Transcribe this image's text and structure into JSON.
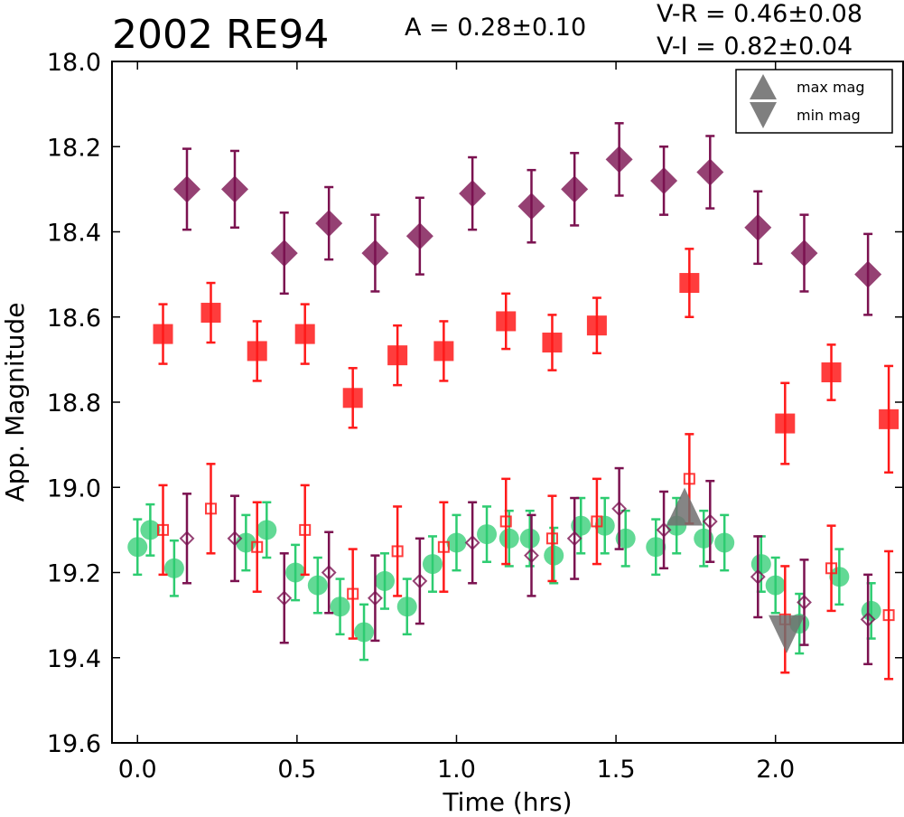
{
  "header": {
    "title": "2002 RE94",
    "amplitude": "A  = 0.28±0.10",
    "color_vr": "V-R = 0.46±0.08",
    "color_vi": "V-I  = 0.82±0.04"
  },
  "chart_data": {
    "type": "scatter",
    "title": "2002 RE94",
    "xlabel": "Time (hrs)",
    "ylabel": "App. Magnitude",
    "xlim": [
      -0.08,
      2.4
    ],
    "ylim": [
      19.6,
      18.0
    ],
    "y_inverted": true,
    "xticks": [
      "0.0",
      "0.5",
      "1.0",
      "1.5",
      "2.0"
    ],
    "xtick_values": [
      0.0,
      0.5,
      1.0,
      1.5,
      2.0
    ],
    "yticks": [
      "18.0",
      "18.2",
      "18.4",
      "18.6",
      "18.8",
      "19.0",
      "19.2",
      "19.4",
      "19.6"
    ],
    "ytick_values": [
      18.0,
      18.2,
      18.4,
      18.6,
      18.8,
      19.0,
      19.2,
      19.4,
      19.6
    ],
    "grid": false,
    "legend_position": "top-right",
    "legend": [
      {
        "label": "max mag",
        "marker": "triangle-up",
        "color": "#7f7f7f"
      },
      {
        "label": "min mag",
        "marker": "triangle-down",
        "color": "#7f7f7f"
      }
    ],
    "colors": {
      "i_band": "#7b1250",
      "r_band": "#ff1a1a",
      "v_band": "#2ecc71",
      "extrema": "#707070"
    },
    "series": [
      {
        "marker": "diamond-filled",
        "color": "#7b1250",
        "x": [
          0.155,
          0.305,
          0.46,
          0.6,
          0.745,
          0.885,
          1.05,
          1.235,
          1.37,
          1.51,
          1.65,
          1.795,
          1.945,
          2.09,
          2.29
        ],
        "y": [
          18.3,
          18.3,
          18.45,
          18.38,
          18.45,
          18.41,
          18.31,
          18.34,
          18.3,
          18.23,
          18.28,
          18.26,
          18.39,
          18.45,
          18.5
        ],
        "err": [
          0.095,
          0.09,
          0.095,
          0.085,
          0.09,
          0.09,
          0.085,
          0.085,
          0.085,
          0.085,
          0.08,
          0.085,
          0.085,
          0.09,
          0.095
        ]
      },
      {
        "marker": "square-filled",
        "color": "#ff1a1a",
        "x": [
          0.08,
          0.23,
          0.375,
          0.525,
          0.675,
          0.815,
          0.96,
          1.155,
          1.3,
          1.44,
          1.73,
          2.03,
          2.175,
          2.355
        ],
        "y": [
          18.64,
          18.59,
          18.68,
          18.64,
          18.79,
          18.69,
          18.68,
          18.61,
          18.66,
          18.62,
          18.52,
          18.85,
          18.73,
          18.84
        ],
        "err": [
          0.07,
          0.07,
          0.07,
          0.07,
          0.07,
          0.07,
          0.07,
          0.065,
          0.065,
          0.065,
          0.08,
          0.095,
          0.065,
          0.125
        ]
      },
      {
        "marker": "circle-filled",
        "color": "#2ecc71",
        "x": [
          0.0,
          0.04,
          0.115,
          0.34,
          0.405,
          0.495,
          0.565,
          0.635,
          0.71,
          0.775,
          0.845,
          0.925,
          1.0,
          1.095,
          1.165,
          1.23,
          1.305,
          1.39,
          1.465,
          1.53,
          1.625,
          1.69,
          1.775,
          1.84,
          1.955,
          2.0,
          2.075,
          2.2,
          2.3
        ],
        "y": [
          19.14,
          19.1,
          19.19,
          19.13,
          19.1,
          19.2,
          19.23,
          19.28,
          19.34,
          19.22,
          19.28,
          19.18,
          19.13,
          19.11,
          19.12,
          19.12,
          19.16,
          19.09,
          19.09,
          19.12,
          19.14,
          19.09,
          19.12,
          19.13,
          19.18,
          19.23,
          19.32,
          19.21,
          19.29
        ],
        "err": [
          0.065,
          0.06,
          0.065,
          0.065,
          0.065,
          0.065,
          0.065,
          0.065,
          0.065,
          0.065,
          0.065,
          0.065,
          0.065,
          0.065,
          0.065,
          0.065,
          0.065,
          0.065,
          0.065,
          0.065,
          0.065,
          0.065,
          0.065,
          0.065,
          0.065,
          0.065,
          0.07,
          0.065,
          0.065
        ]
      },
      {
        "marker": "diamond-open",
        "color": "#7b1250",
        "x": [
          0.155,
          0.305,
          0.46,
          0.6,
          0.745,
          0.885,
          1.05,
          1.235,
          1.37,
          1.51,
          1.65,
          1.795,
          1.945,
          2.09,
          2.29
        ],
        "y": [
          19.12,
          19.12,
          19.26,
          19.2,
          19.26,
          19.22,
          19.13,
          19.16,
          19.12,
          19.05,
          19.1,
          19.08,
          19.21,
          19.27,
          19.31
        ],
        "err": [
          0.105,
          0.1,
          0.105,
          0.095,
          0.1,
          0.1,
          0.095,
          0.095,
          0.095,
          0.095,
          0.09,
          0.095,
          0.095,
          0.1,
          0.105
        ]
      },
      {
        "marker": "square-open",
        "color": "#ff1a1a",
        "x": [
          0.08,
          0.23,
          0.375,
          0.525,
          0.675,
          0.815,
          0.96,
          1.155,
          1.3,
          1.44,
          1.73,
          2.03,
          2.175,
          2.355
        ],
        "y": [
          19.1,
          19.05,
          19.14,
          19.1,
          19.25,
          19.15,
          19.14,
          19.08,
          19.12,
          19.08,
          18.98,
          19.31,
          19.19,
          19.3
        ],
        "err": [
          0.105,
          0.105,
          0.105,
          0.105,
          0.105,
          0.105,
          0.105,
          0.1,
          0.1,
          0.1,
          0.105,
          0.125,
          0.1,
          0.15
        ]
      },
      {
        "marker": "triangle-up",
        "color": "#707070",
        "x": [
          1.715
        ],
        "y": [
          19.06
        ]
      },
      {
        "marker": "triangle-down",
        "color": "#707070",
        "x": [
          2.035
        ],
        "y": [
          19.33
        ]
      }
    ]
  }
}
